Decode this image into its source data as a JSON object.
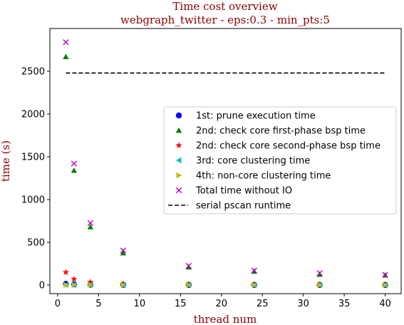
{
  "chart_data": {
    "type": "scatter",
    "title": "Time cost overview",
    "subtitle": "webgraph_twitter - eps:0.3 - min_pts:5",
    "xlabel": "thread num",
    "ylabel": "time (s)",
    "xlim": [
      -0.95,
      41.95
    ],
    "ylim": [
      -100,
      3000
    ],
    "xticks": [
      0,
      5,
      10,
      15,
      20,
      25,
      30,
      35,
      40
    ],
    "yticks": [
      0,
      500,
      1000,
      1500,
      2000,
      2500
    ],
    "grid": false,
    "legend_position": "center-right",
    "x": [
      1,
      2,
      4,
      8,
      16,
      24,
      32,
      40
    ],
    "series": [
      {
        "name": "1st: prune execution time",
        "marker": "circle",
        "color": "#0000ff",
        "values": [
          15,
          8,
          5,
          3,
          2,
          2,
          2,
          2
        ]
      },
      {
        "name": "2nd: check core first-phase bsp time",
        "marker": "triangle-up",
        "color": "#008000",
        "values": [
          2670,
          1340,
          680,
          375,
          210,
          160,
          125,
          115
        ]
      },
      {
        "name": "2nd: check core second-phase bsp time",
        "marker": "star",
        "color": "#ff0000",
        "values": [
          150,
          70,
          35,
          15,
          8,
          5,
          4,
          3
        ]
      },
      {
        "name": "3rd: core clustering time",
        "marker": "triangle-left",
        "color": "#00bfbf",
        "values": [
          3,
          2,
          2,
          1,
          1,
          1,
          1,
          1
        ]
      },
      {
        "name": "4th: non-core clustering time",
        "marker": "triangle-right",
        "color": "#bfbf00",
        "values": [
          2,
          2,
          1,
          1,
          1,
          1,
          1,
          1
        ]
      },
      {
        "name": "Total time without IO",
        "marker": "x",
        "color": "#bf00bf",
        "values": [
          2840,
          1420,
          725,
          405,
          225,
          170,
          140,
          120
        ]
      }
    ],
    "reference_lines": [
      {
        "name": "serial pscan runtime",
        "style": "dashed",
        "color": "#000000",
        "y": 2480,
        "x_range": [
          1,
          40
        ]
      }
    ]
  }
}
